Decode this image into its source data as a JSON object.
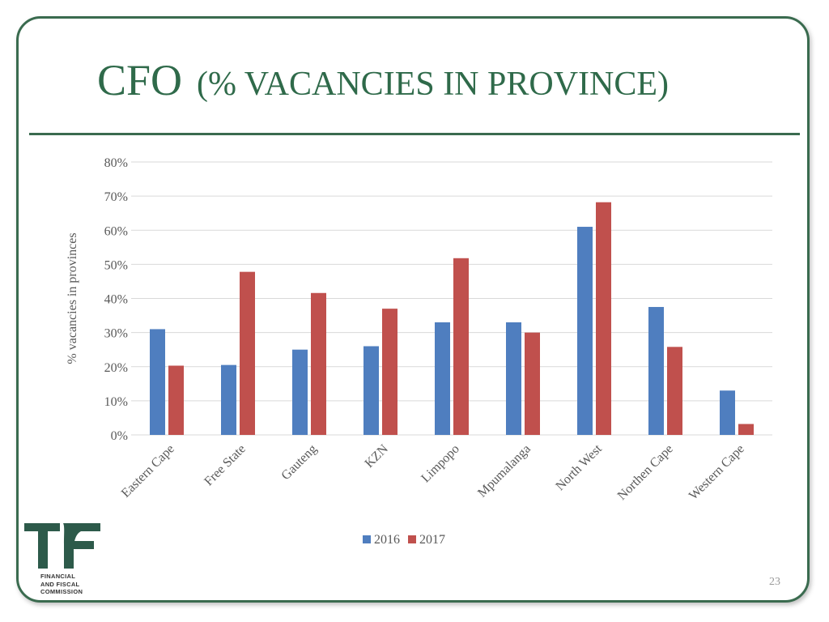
{
  "slide": {
    "title_main": "CFO",
    "title_sub": "(% VACANCIES IN PROVINCE)",
    "page_number": "23",
    "logo_lines": [
      "FINANCIAL",
      "AND FISCAL",
      "COMMISSION"
    ]
  },
  "colors": {
    "theme_green": "#3a6b4f",
    "title_green": "#2f6a4a",
    "series_2016": "#4f7ebf",
    "series_2017": "#c0504d",
    "logo_dark": "#2d5a4a",
    "gridline": "#d9d9d9"
  },
  "chart_data": {
    "type": "bar",
    "categories": [
      "Eastern Cape",
      "Free State",
      "Gauteng",
      "KZN",
      "Limpopo",
      "Mpumalanga",
      "North West",
      "Northen Cape",
      "Western Cape"
    ],
    "series": [
      {
        "name": "2016",
        "color": "#4f7ebf",
        "values": [
          31,
          20.5,
          25,
          26,
          33,
          33,
          61,
          37.5,
          13
        ]
      },
      {
        "name": "2017",
        "color": "#c0504d",
        "values": [
          20.3,
          47.8,
          41.6,
          37,
          51.8,
          30,
          68.2,
          25.8,
          3.2
        ]
      }
    ],
    "ylabel": "% vacancies in provinces",
    "ylim": [
      0,
      80
    ],
    "yticks": [
      0,
      10,
      20,
      30,
      40,
      50,
      60,
      70,
      80
    ],
    "ytick_labels": [
      "0%",
      "10%",
      "20%",
      "30%",
      "40%",
      "50%",
      "60%",
      "70%",
      "80%"
    ],
    "grid": true,
    "legend_position": "bottom"
  }
}
